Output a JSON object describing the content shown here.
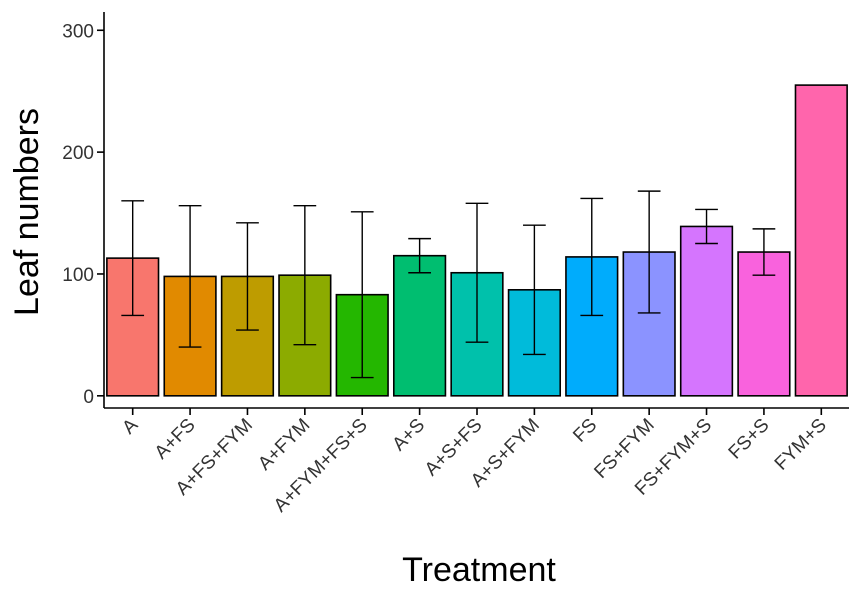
{
  "chart_data": {
    "type": "bar",
    "xlabel": "Treatment",
    "ylabel": "Leaf numbers",
    "ylim": [
      -10,
      315
    ],
    "yticks": [
      0,
      100,
      200,
      300
    ],
    "grid": false,
    "legend": "none",
    "categories": [
      "A",
      "A+FS",
      "A+FS+FYM",
      "A+FYM",
      "A+FYM+FS+S",
      "A+S",
      "A+S+FS",
      "A+S+FYM",
      "FS",
      "FS+FYM",
      "FS+FYM+S",
      "FS+S",
      "FYM+S"
    ],
    "values": [
      113,
      98,
      98,
      99,
      83,
      115,
      101,
      87,
      114,
      118,
      139,
      118,
      255
    ],
    "errors": [
      47,
      58,
      44,
      57,
      68,
      14,
      57,
      53,
      48,
      50,
      14,
      19,
      null
    ],
    "colors": [
      "#F8766D",
      "#E18A00",
      "#BE9C00",
      "#8CAB00",
      "#24B700",
      "#00BE70",
      "#00C1AB",
      "#00BBDA",
      "#00ACFC",
      "#8B93FF",
      "#D575FE",
      "#F962DD",
      "#FF65AC"
    ]
  }
}
